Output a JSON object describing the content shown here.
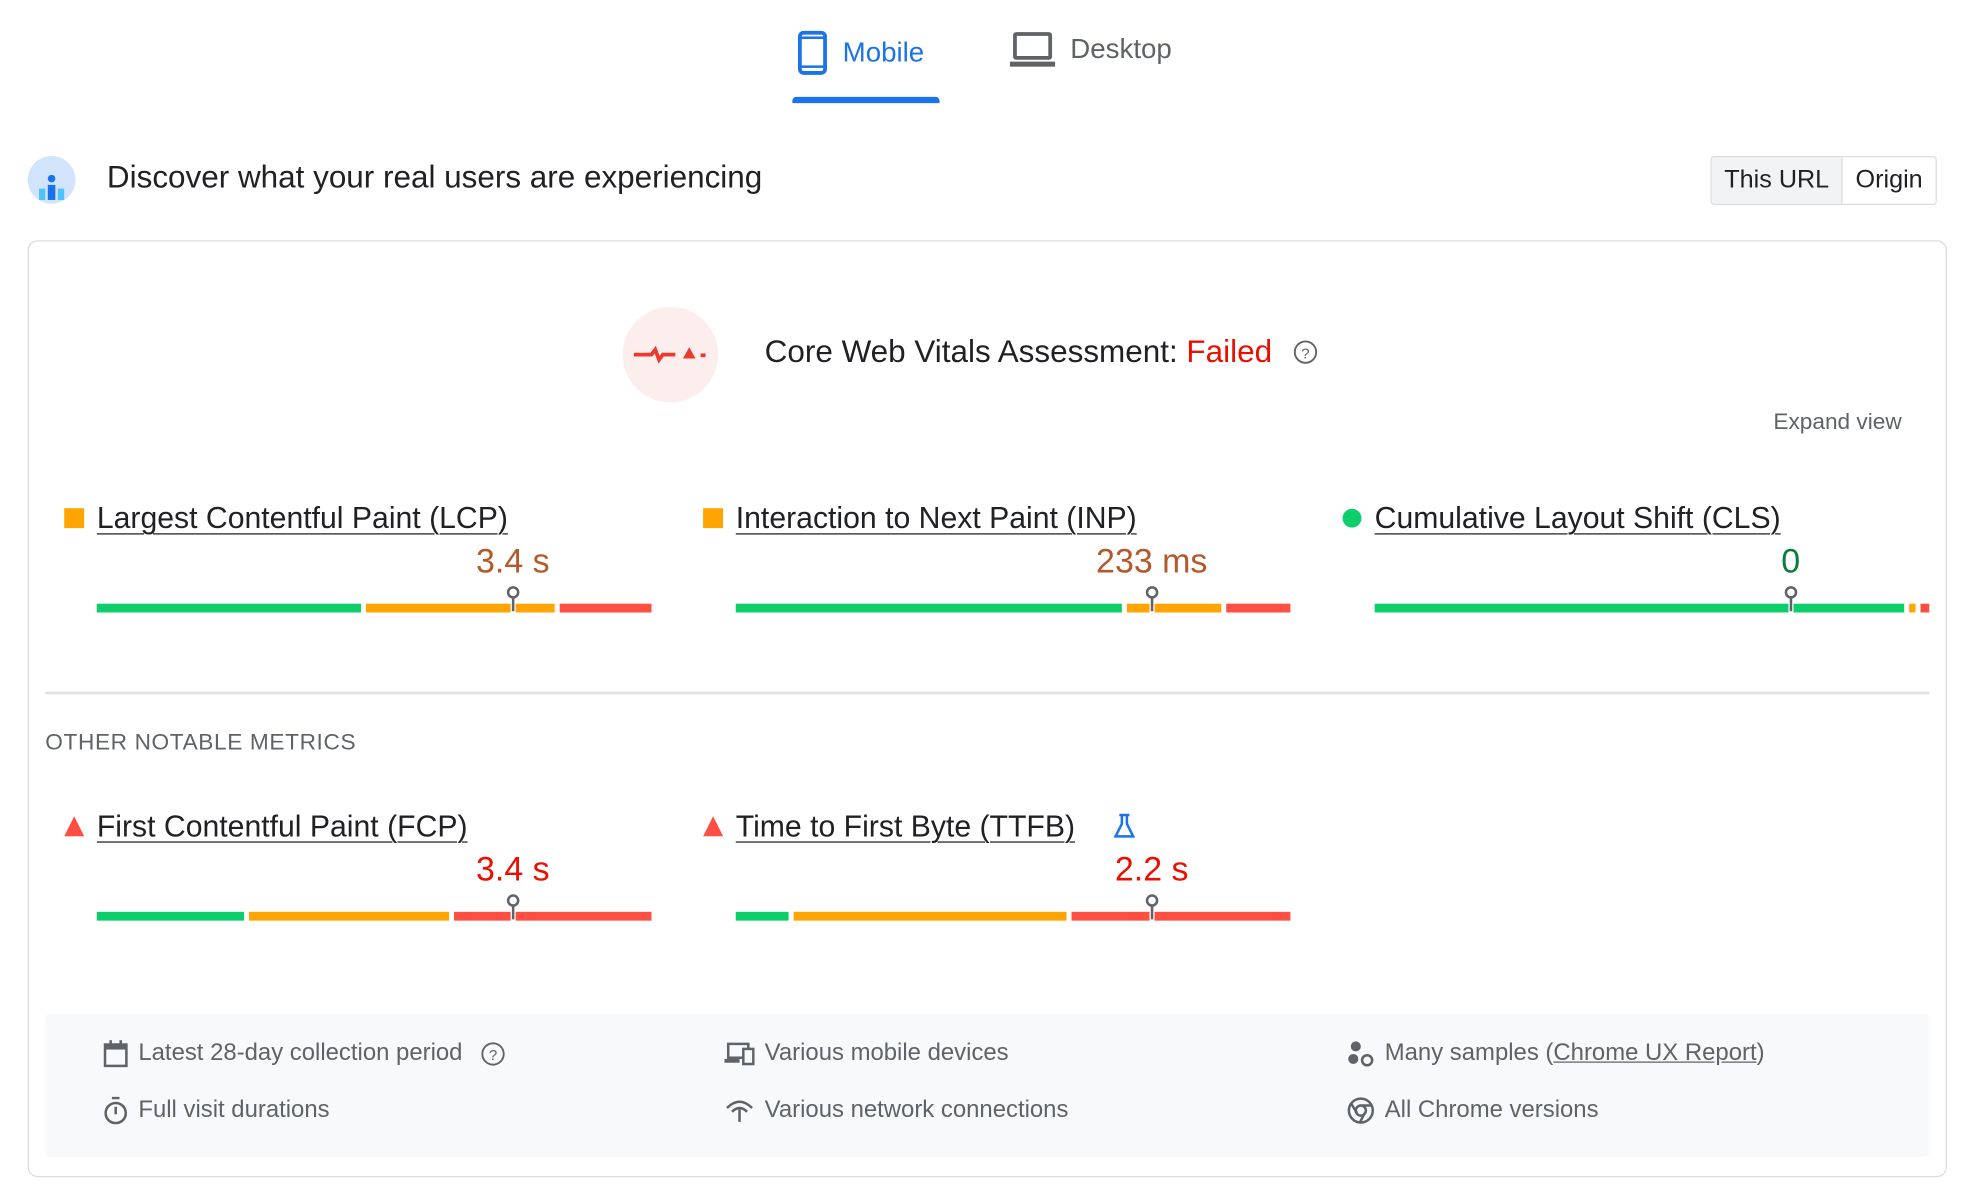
{
  "tabs": [
    {
      "label": "Mobile",
      "icon": "phone-icon",
      "active": true
    },
    {
      "label": "Desktop",
      "icon": "laptop-icon",
      "active": false
    }
  ],
  "header": {
    "title": "Discover what your real users are experiencing",
    "toggle": [
      "This URL",
      "Origin"
    ],
    "selected": "This URL"
  },
  "assessment": {
    "label": "Core Web Vitals Assessment: ",
    "status": "Failed",
    "expand": "Expand view"
  },
  "colors": {
    "good": "#0cce6b",
    "needs_improvement": "#ffa400",
    "poor": "#ff4e42",
    "accent": "#1a73e8"
  },
  "core_metrics": [
    {
      "title": "Largest Contentful Paint (LCP)",
      "value": "3.4 s",
      "rating": "needs-improvement",
      "distribution": [
        48,
        35,
        17
      ],
      "p75_marker": 75
    },
    {
      "title": "Interaction to Next Paint (INP)",
      "value": "233 ms",
      "rating": "needs-improvement",
      "distribution": [
        70,
        18,
        12
      ],
      "p75_marker": 75
    },
    {
      "title": "Cumulative Layout Shift (CLS)",
      "value": "0",
      "rating": "good",
      "distribution": [
        96,
        2,
        2
      ],
      "p75_marker": 75
    }
  ],
  "other_heading": "OTHER NOTABLE METRICS",
  "other_metrics": [
    {
      "title": "First Contentful Paint (FCP)",
      "value": "3.4 s",
      "rating": "poor",
      "distribution": [
        27,
        37,
        36
      ],
      "p75_marker": 75
    },
    {
      "title": "Time to First Byte (TTFB)",
      "value": "2.2 s",
      "rating": "poor",
      "distribution": [
        10,
        50,
        40
      ],
      "p75_marker": 75,
      "badge": "flask-icon"
    }
  ],
  "footer": {
    "period": "Latest 28-day collection period",
    "durations": "Full visit durations",
    "devices": "Various mobile devices",
    "network": "Various network connections",
    "samples_prefix": "Many samples (",
    "samples_link": "Chrome UX Report",
    "samples_suffix": ")",
    "versions": "All Chrome versions"
  }
}
